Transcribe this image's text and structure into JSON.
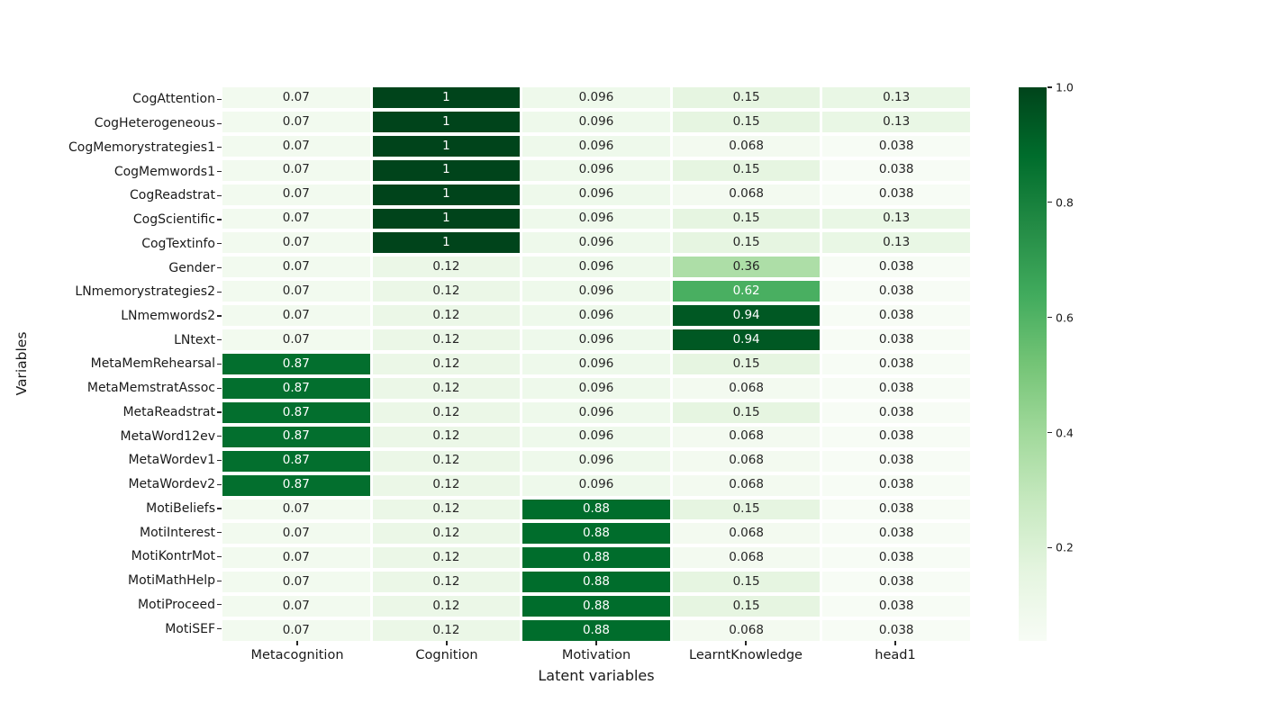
{
  "figure": {
    "background": "#ffffff"
  },
  "chart_data": {
    "type": "heatmap",
    "title": "",
    "xlabel": "Latent variables",
    "ylabel": "Variables",
    "legend_position": "right-colorbar",
    "grid": false,
    "categories_x": [
      "Metacognition",
      "Cognition",
      "Motivation",
      "LearntKnowledge",
      "head1"
    ],
    "categories_y": [
      "CogAttention",
      "CogHeterogeneous",
      "CogMemorystrategies1",
      "CogMemwords1",
      "CogReadstrat",
      "CogScientific",
      "CogTextinfo",
      "Gender",
      "LNmemorystrategies2",
      "LNmemwords2",
      "LNtext",
      "MetaMemRehearsal",
      "MetaMemstratAssoc",
      "MetaReadstrat",
      "MetaWord12ev",
      "MetaWordev1",
      "MetaWordev2",
      "MotiBeliefs",
      "MotiInterest",
      "MotiKontrMot",
      "MotiMathHelp",
      "MotiProceed",
      "MotiSEF"
    ],
    "values": [
      [
        0.07,
        1,
        0.096,
        0.15,
        0.13
      ],
      [
        0.07,
        1,
        0.096,
        0.15,
        0.13
      ],
      [
        0.07,
        1,
        0.096,
        0.068,
        0.038
      ],
      [
        0.07,
        1,
        0.096,
        0.15,
        0.038
      ],
      [
        0.07,
        1,
        0.096,
        0.068,
        0.038
      ],
      [
        0.07,
        1,
        0.096,
        0.15,
        0.13
      ],
      [
        0.07,
        1,
        0.096,
        0.15,
        0.13
      ],
      [
        0.07,
        0.12,
        0.096,
        0.36,
        0.038
      ],
      [
        0.07,
        0.12,
        0.096,
        0.62,
        0.038
      ],
      [
        0.07,
        0.12,
        0.096,
        0.94,
        0.038
      ],
      [
        0.07,
        0.12,
        0.096,
        0.94,
        0.038
      ],
      [
        0.87,
        0.12,
        0.096,
        0.15,
        0.038
      ],
      [
        0.87,
        0.12,
        0.096,
        0.068,
        0.038
      ],
      [
        0.87,
        0.12,
        0.096,
        0.15,
        0.038
      ],
      [
        0.87,
        0.12,
        0.096,
        0.068,
        0.038
      ],
      [
        0.87,
        0.12,
        0.096,
        0.068,
        0.038
      ],
      [
        0.87,
        0.12,
        0.096,
        0.068,
        0.038
      ],
      [
        0.07,
        0.12,
        0.88,
        0.15,
        0.038
      ],
      [
        0.07,
        0.12,
        0.88,
        0.068,
        0.038
      ],
      [
        0.07,
        0.12,
        0.88,
        0.068,
        0.038
      ],
      [
        0.07,
        0.12,
        0.88,
        0.15,
        0.038
      ],
      [
        0.07,
        0.12,
        0.88,
        0.15,
        0.038
      ],
      [
        0.07,
        0.12,
        0.88,
        0.068,
        0.038
      ]
    ],
    "vmin": 0.038,
    "vmax": 1.0,
    "colormap": "Greens",
    "colormap_anchors": [
      {
        "t": 0.0,
        "color": "#f7fcf5"
      },
      {
        "t": 0.125,
        "color": "#e5f5e0"
      },
      {
        "t": 0.25,
        "color": "#c7e9c0"
      },
      {
        "t": 0.375,
        "color": "#a1d99b"
      },
      {
        "t": 0.5,
        "color": "#74c476"
      },
      {
        "t": 0.625,
        "color": "#41ab5d"
      },
      {
        "t": 0.75,
        "color": "#238b45"
      },
      {
        "t": 0.875,
        "color": "#006d2c"
      },
      {
        "t": 1.0,
        "color": "#00441b"
      }
    ],
    "annotation_colors": {
      "light": "#262626",
      "dark": "#ffffff"
    },
    "colorbar_ticks": [
      "1.0",
      "0.8",
      "0.6",
      "0.4",
      "0.2"
    ],
    "colorbar_tick_values": [
      1.0,
      0.8,
      0.6,
      0.4,
      0.2
    ]
  }
}
